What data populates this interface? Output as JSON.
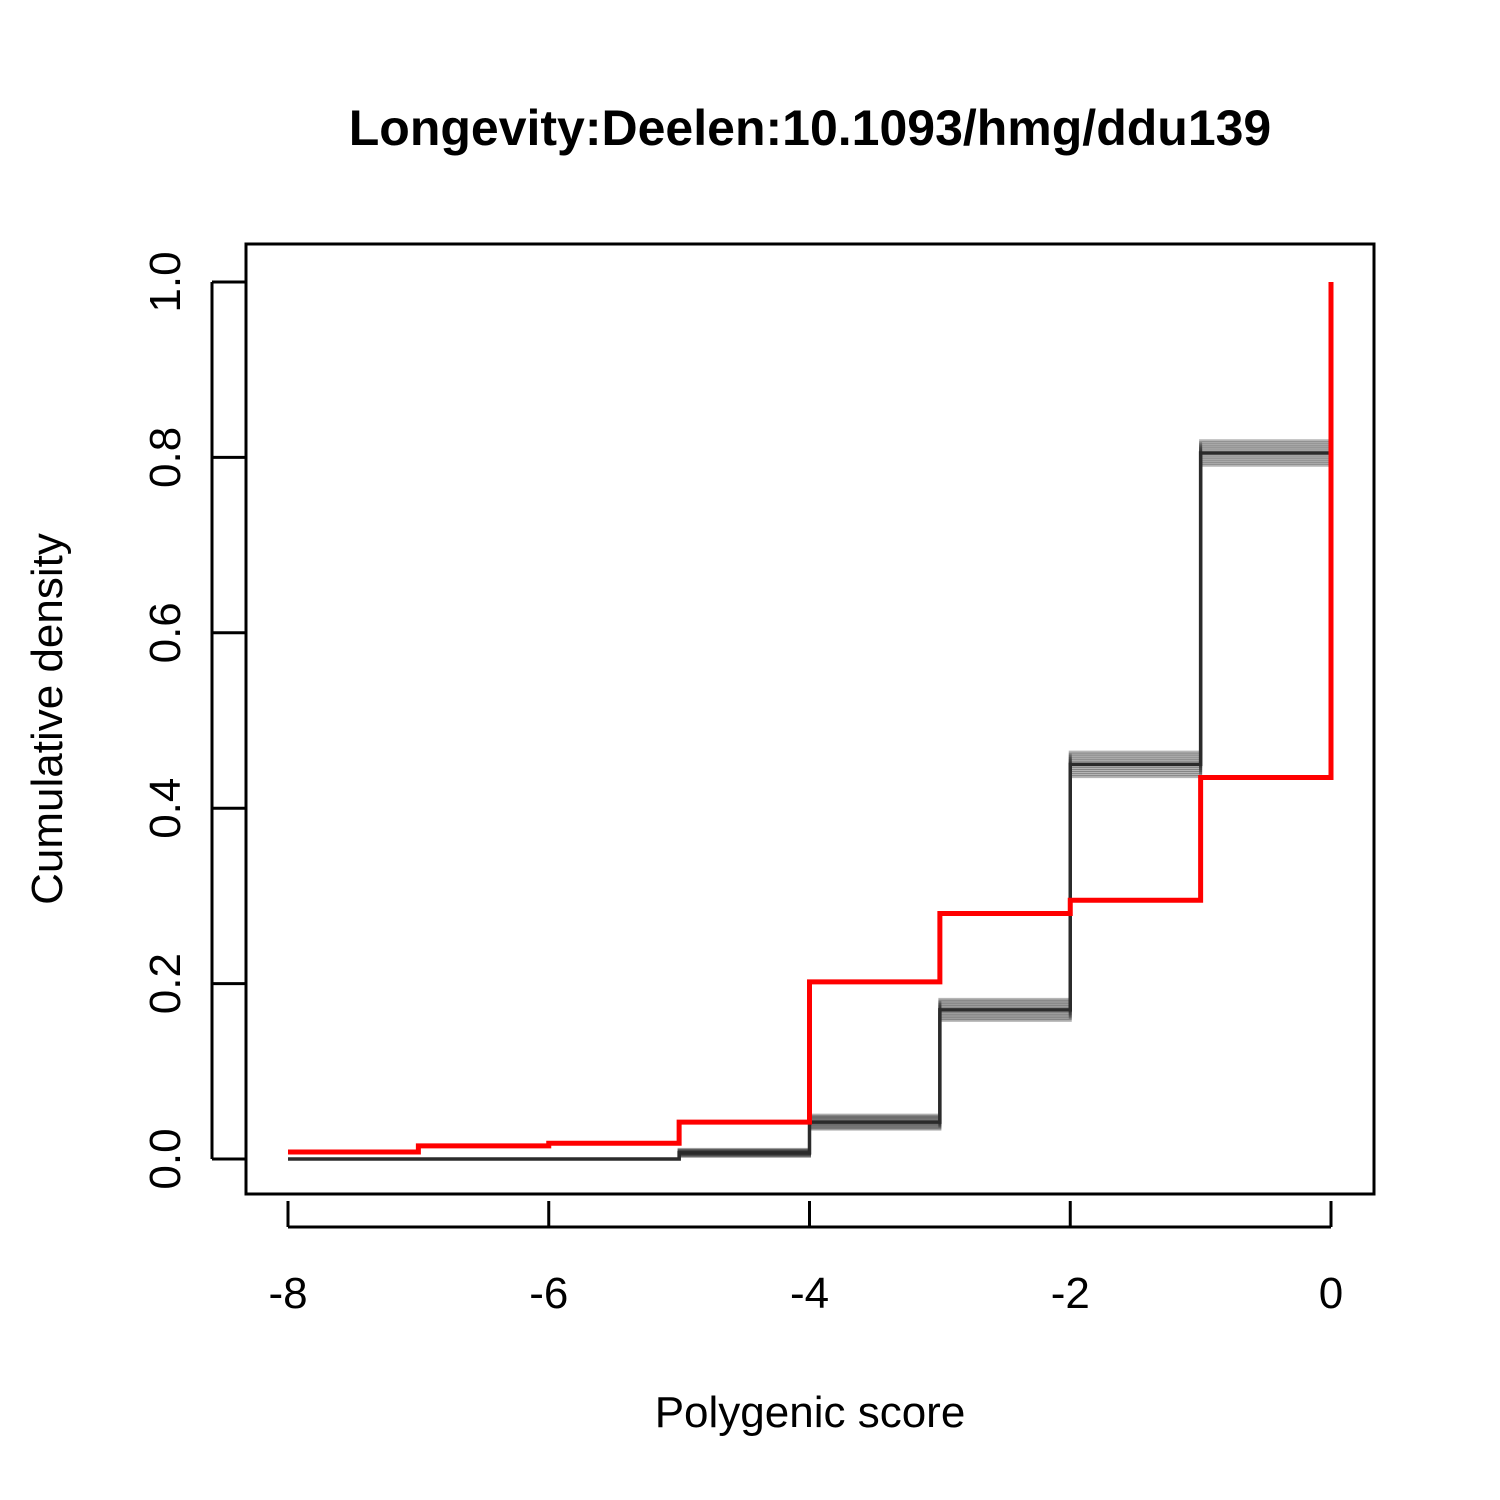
{
  "chart_data": {
    "type": "line",
    "step": true,
    "title": "Longevity:Deelen:10.1093/hmg/ddu139",
    "xlabel": "Polygenic score",
    "ylabel": "Cumulative density",
    "xlim": [
      -8,
      0
    ],
    "ylim": [
      0,
      1
    ],
    "xticks": [
      "-8",
      "-6",
      "-4",
      "-2",
      "0"
    ],
    "yticks": [
      "0.0",
      "0.2",
      "0.4",
      "0.6",
      "0.8",
      "1.0"
    ],
    "grid": false,
    "legend": "none",
    "series": [
      {
        "color": "#2b2b2b",
        "band": true,
        "x": [
          -8,
          -7,
          -6,
          -5,
          -4,
          -3,
          -2,
          -1,
          0
        ],
        "y": [
          0.0,
          0.0,
          0.0,
          0.007,
          0.042,
          0.17,
          0.45,
          0.805,
          0.805
        ],
        "spread": [
          0.0,
          0.0,
          0.0,
          0.004,
          0.008,
          0.012,
          0.014,
          0.014,
          0.014
        ]
      },
      {
        "color": "#ff0000",
        "band": false,
        "x": [
          -8,
          -7,
          -6,
          -5,
          -4,
          -3,
          -2,
          -1,
          0
        ],
        "y": [
          0.008,
          0.015,
          0.018,
          0.042,
          0.202,
          0.28,
          0.295,
          0.435,
          1.0
        ]
      }
    ]
  }
}
